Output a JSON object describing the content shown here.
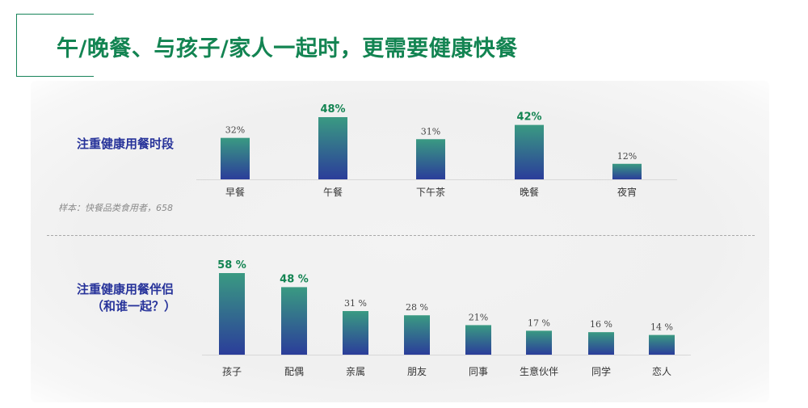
{
  "title": "午/晚餐、与孩子/家人一起时，更需要健康快餐",
  "sample_note": "样本：快餐品类食用者，658",
  "colors": {
    "accent": "#138452",
    "label_blue": "#27339a",
    "bar_top": "#3a9a82",
    "bar_bottom": "#2b3d9a",
    "highlight_value": "#138452",
    "value_gray": "#444444"
  },
  "chart_data": [
    {
      "type": "bar",
      "title": "注重健康用餐时段",
      "categories": [
        "早餐",
        "午餐",
        "下午茶",
        "晚餐",
        "夜宵"
      ],
      "values": [
        32,
        48,
        31,
        42,
        12
      ],
      "value_labels": [
        "32%",
        "48%",
        "31%",
        "42%",
        "12%"
      ],
      "highlighted": [
        false,
        true,
        false,
        true,
        false
      ],
      "ylim": [
        0,
        48
      ]
    },
    {
      "type": "bar",
      "title": "注重健康用餐伴侣",
      "subtitle": "（和谁一起？）",
      "categories": [
        "孩子",
        "配偶",
        "亲属",
        "朋友",
        "同事",
        "生意伙伴",
        "同学",
        "恋人"
      ],
      "values": [
        58,
        48,
        31,
        28,
        21,
        17,
        16,
        14
      ],
      "value_labels": [
        "58 %",
        "48 %",
        "31 %",
        "28 %",
        "21%",
        "17 %",
        "16 %",
        "14 %"
      ],
      "highlighted": [
        true,
        true,
        false,
        false,
        false,
        false,
        false,
        false
      ],
      "ylim": [
        0,
        58
      ]
    }
  ]
}
